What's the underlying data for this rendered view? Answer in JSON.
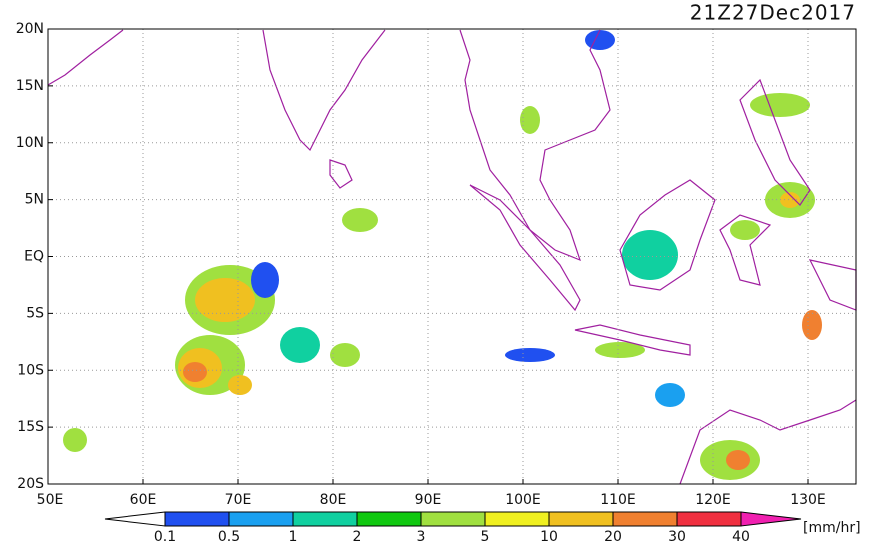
{
  "header": {
    "title": "21Z27Dec2017"
  },
  "map": {
    "lat_labels": [
      "20N",
      "15N",
      "10N",
      "5N",
      "EQ",
      "5S",
      "10S",
      "15S",
      "20S"
    ],
    "lon_labels": [
      "50E",
      "60E",
      "70E",
      "80E",
      "90E",
      "100E",
      "110E",
      "120E",
      "130E"
    ]
  },
  "colorbar": {
    "labels": [
      "0.1",
      "0.5",
      "1",
      "2",
      "3",
      "5",
      "10",
      "20",
      "30",
      "40"
    ],
    "colors": [
      "#2050f0",
      "#1aa0f0",
      "#10d0a0",
      "#10c810",
      "#a0e040",
      "#f0f020",
      "#f0c020",
      "#f08030",
      "#f03040"
    ],
    "unit": "[mm/hr]"
  }
}
